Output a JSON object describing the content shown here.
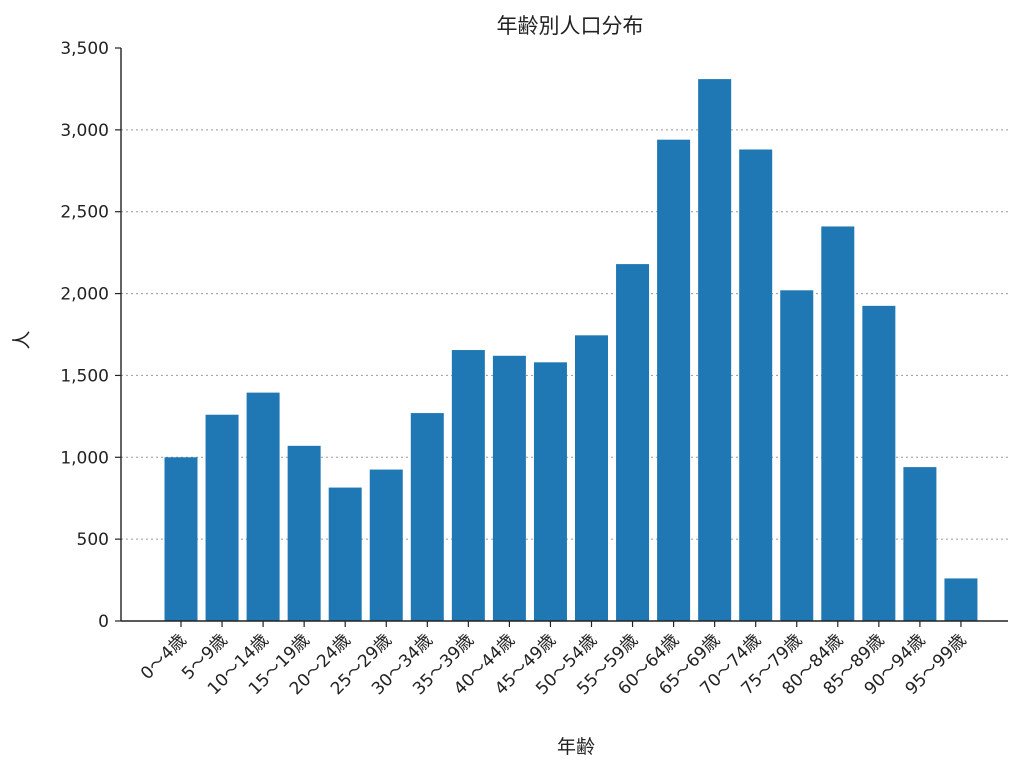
{
  "chart_data": {
    "type": "bar",
    "title": "年齢別人口分布",
    "xlabel": "年齢",
    "ylabel": "人",
    "ylim": [
      0,
      3500
    ],
    "yticks": [
      0,
      500,
      1000,
      1500,
      2000,
      2500,
      3000,
      3500
    ],
    "ytick_labels": [
      "0",
      "500",
      "1,000",
      "1,500",
      "2,000",
      "2,500",
      "3,000",
      "3,500"
    ],
    "grid": "horizontal dotted",
    "bar_color": "#1f77b4",
    "categories": [
      "0～4歳",
      "5～9歳",
      "10～14歳",
      "15～19歳",
      "20～24歳",
      "25～29歳",
      "30～34歳",
      "35～39歳",
      "40～44歳",
      "45～49歳",
      "50～54歳",
      "55～59歳",
      "60～64歳",
      "65～69歳",
      "70～74歳",
      "75～79歳",
      "80～84歳",
      "85～89歳",
      "90～94歳",
      "95～99歳"
    ],
    "values": [
      1000,
      1260,
      1395,
      1070,
      815,
      925,
      1270,
      1655,
      1620,
      1580,
      1745,
      2180,
      2940,
      3310,
      2880,
      2020,
      2410,
      1925,
      940,
      260
    ]
  }
}
